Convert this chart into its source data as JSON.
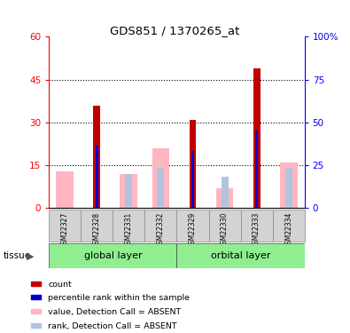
{
  "title": "GDS851 / 1370265_at",
  "samples": [
    "GSM22327",
    "GSM22328",
    "GSM22331",
    "GSM22332",
    "GSM22329",
    "GSM22330",
    "GSM22333",
    "GSM22334"
  ],
  "groups": {
    "global layer": {
      "indices": [
        0,
        1,
        2,
        3
      ],
      "label": "global layer"
    },
    "orbital layer": {
      "indices": [
        4,
        5,
        6,
        7
      ],
      "label": "orbital layer"
    }
  },
  "count_values": [
    0,
    36,
    0,
    0,
    31,
    0,
    49,
    0
  ],
  "percentile_rank_values": [
    0,
    22,
    0,
    0,
    20,
    0,
    27,
    0
  ],
  "absent_value_values": [
    13,
    0,
    12,
    21,
    0,
    7,
    0,
    16
  ],
  "absent_rank_values": [
    0,
    0,
    12,
    14,
    0,
    11,
    0,
    14
  ],
  "ylim_left": [
    0,
    60
  ],
  "ylim_right": [
    0,
    100
  ],
  "yticks_left": [
    0,
    15,
    30,
    45,
    60
  ],
  "yticks_right": [
    0,
    25,
    50,
    75,
    100
  ],
  "color_count": "#C00000",
  "color_rank": "#0000CD",
  "color_absent_value": "#FFB6C1",
  "color_absent_rank": "#B0C4DE",
  "color_group_bg": "#90EE90",
  "color_xticklabels_bg": "#D3D3D3",
  "legend_items": [
    {
      "label": "count",
      "color": "#C00000"
    },
    {
      "label": "percentile rank within the sample",
      "color": "#0000CD"
    },
    {
      "label": "value, Detection Call = ABSENT",
      "color": "#FFB6C1"
    },
    {
      "label": "rank, Detection Call = ABSENT",
      "color": "#B0C4DE"
    }
  ]
}
